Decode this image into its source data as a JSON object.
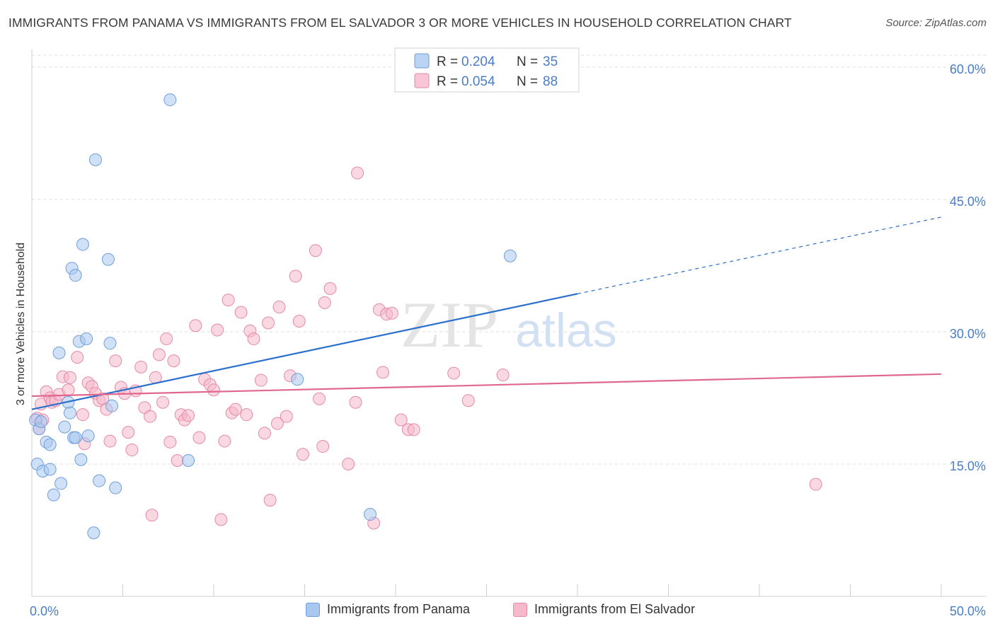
{
  "title": "IMMIGRANTS FROM PANAMA VS IMMIGRANTS FROM EL SALVADOR 3 OR MORE VEHICLES IN HOUSEHOLD CORRELATION CHART",
  "source": "Source: ZipAtlas.com",
  "watermark": {
    "zip": "ZIP",
    "atlas": "atlas"
  },
  "colors": {
    "panama_fill": "#a9c8f0",
    "panama_stroke": "#6f9fd8",
    "panama_line": "#2b6fce",
    "salvador_fill": "#f6b8cb",
    "salvador_stroke": "#e58aa8",
    "salvador_line": "#e0688f",
    "tick_label": "#4a7cc7",
    "grid": "#dcdcdc"
  },
  "legend_top": [
    {
      "r_label": "R = ",
      "r_value": "0.204",
      "n_label": "N = ",
      "n_value": "35"
    },
    {
      "r_label": "R = ",
      "r_value": "0.054",
      "n_label": "N = ",
      "n_value": "88"
    }
  ],
  "chart_data": {
    "type": "scatter",
    "title": "IMMIGRANTS FROM PANAMA VS IMMIGRANTS FROM EL SALVADOR 3 OR MORE VEHICLES IN HOUSEHOLD CORRELATION CHART",
    "xlabel": "",
    "ylabel": "3 or more Vehicles in Household",
    "xlim": [
      0,
      50
    ],
    "ylim": [
      0,
      62
    ],
    "x_tick_labels": [
      "0.0%",
      "50.0%"
    ],
    "y_ticks": [
      15,
      30,
      45,
      60
    ],
    "y_tick_labels": [
      "15.0%",
      "30.0%",
      "45.0%",
      "60.0%"
    ],
    "grid": true,
    "legend_position": "top-center",
    "series": [
      {
        "name": "Immigrants from Panama",
        "r": 0.204,
        "n": 35,
        "trend": {
          "x0": 0,
          "y0": 21.2,
          "x1": 30,
          "y1": 34.3,
          "dash_to_x": 50,
          "dash_to_y": 43.0
        },
        "points": [
          [
            0.2,
            20.0
          ],
          [
            0.3,
            15.0
          ],
          [
            0.4,
            19.0
          ],
          [
            0.5,
            19.8
          ],
          [
            0.6,
            14.2
          ],
          [
            0.8,
            17.5
          ],
          [
            1.0,
            17.2
          ],
          [
            1.0,
            14.4
          ],
          [
            1.2,
            11.5
          ],
          [
            1.5,
            27.6
          ],
          [
            1.6,
            12.8
          ],
          [
            1.8,
            19.2
          ],
          [
            2.0,
            22.0
          ],
          [
            2.1,
            20.8
          ],
          [
            2.2,
            37.2
          ],
          [
            2.3,
            18.0
          ],
          [
            2.4,
            18.0
          ],
          [
            2.4,
            36.4
          ],
          [
            2.6,
            28.9
          ],
          [
            2.7,
            15.5
          ],
          [
            2.8,
            39.9
          ],
          [
            3.0,
            29.2
          ],
          [
            3.1,
            18.2
          ],
          [
            3.5,
            49.5
          ],
          [
            3.7,
            13.1
          ],
          [
            4.2,
            38.2
          ],
          [
            4.3,
            28.7
          ],
          [
            4.4,
            21.6
          ],
          [
            4.6,
            12.3
          ],
          [
            3.4,
            7.2
          ],
          [
            7.6,
            56.3
          ],
          [
            8.6,
            15.4
          ],
          [
            14.6,
            24.6
          ],
          [
            18.6,
            9.3
          ],
          [
            26.3,
            38.6
          ]
        ]
      },
      {
        "name": "Immigrants from El Salvador",
        "r": 0.054,
        "n": 88,
        "trend": {
          "x0": 0,
          "y0": 22.7,
          "x1": 50,
          "y1": 25.2
        },
        "points": [
          [
            0.3,
            20.2
          ],
          [
            0.4,
            19.0
          ],
          [
            0.5,
            21.8
          ],
          [
            0.6,
            20.0
          ],
          [
            0.8,
            23.2
          ],
          [
            1.0,
            22.5
          ],
          [
            1.1,
            22.0
          ],
          [
            1.3,
            22.2
          ],
          [
            1.5,
            22.9
          ],
          [
            1.7,
            24.9
          ],
          [
            2.0,
            23.4
          ],
          [
            2.1,
            24.8
          ],
          [
            2.5,
            27.1
          ],
          [
            2.8,
            20.6
          ],
          [
            2.9,
            17.3
          ],
          [
            3.1,
            24.2
          ],
          [
            3.3,
            23.8
          ],
          [
            3.5,
            23.0
          ],
          [
            3.7,
            22.2
          ],
          [
            3.9,
            22.4
          ],
          [
            4.1,
            21.2
          ],
          [
            4.3,
            17.6
          ],
          [
            4.6,
            26.7
          ],
          [
            4.9,
            23.7
          ],
          [
            5.1,
            23.0
          ],
          [
            5.3,
            18.6
          ],
          [
            5.5,
            16.6
          ],
          [
            5.7,
            23.3
          ],
          [
            6.0,
            26.0
          ],
          [
            6.2,
            21.4
          ],
          [
            6.5,
            20.4
          ],
          [
            6.6,
            9.2
          ],
          [
            6.8,
            24.8
          ],
          [
            7.0,
            27.4
          ],
          [
            7.2,
            22.0
          ],
          [
            7.4,
            29.2
          ],
          [
            7.6,
            17.5
          ],
          [
            7.8,
            26.7
          ],
          [
            8.0,
            15.4
          ],
          [
            8.2,
            20.6
          ],
          [
            8.4,
            20.0
          ],
          [
            8.6,
            20.5
          ],
          [
            9.0,
            30.7
          ],
          [
            9.2,
            18.0
          ],
          [
            9.5,
            24.6
          ],
          [
            9.8,
            24.0
          ],
          [
            10.0,
            23.4
          ],
          [
            10.2,
            30.2
          ],
          [
            10.4,
            8.7
          ],
          [
            10.6,
            17.6
          ],
          [
            10.8,
            33.6
          ],
          [
            11.0,
            20.8
          ],
          [
            11.2,
            21.2
          ],
          [
            11.5,
            32.2
          ],
          [
            11.8,
            20.6
          ],
          [
            12.0,
            30.1
          ],
          [
            12.2,
            29.2
          ],
          [
            12.6,
            24.5
          ],
          [
            12.8,
            18.5
          ],
          [
            13.0,
            31.0
          ],
          [
            13.5,
            19.6
          ],
          [
            13.6,
            32.8
          ],
          [
            14.0,
            20.4
          ],
          [
            13.1,
            10.9
          ],
          [
            14.2,
            25.0
          ],
          [
            14.5,
            36.3
          ],
          [
            14.7,
            31.2
          ],
          [
            14.9,
            16.1
          ],
          [
            15.6,
            39.2
          ],
          [
            15.8,
            22.4
          ],
          [
            16.0,
            17.0
          ],
          [
            16.1,
            33.3
          ],
          [
            16.4,
            34.9
          ],
          [
            17.4,
            15.0
          ],
          [
            17.8,
            22.0
          ],
          [
            18.8,
            8.3
          ],
          [
            19.1,
            32.5
          ],
          [
            19.3,
            25.4
          ],
          [
            19.5,
            32.0
          ],
          [
            19.8,
            32.1
          ],
          [
            20.3,
            20.0
          ],
          [
            20.7,
            18.9
          ],
          [
            21.0,
            18.9
          ],
          [
            23.2,
            25.3
          ],
          [
            24.0,
            22.2
          ],
          [
            25.9,
            25.1
          ],
          [
            43.1,
            12.7
          ],
          [
            17.9,
            48.0
          ]
        ]
      }
    ]
  },
  "legend_bottom": [
    "Immigrants from Panama",
    "Immigrants from El Salvador"
  ]
}
